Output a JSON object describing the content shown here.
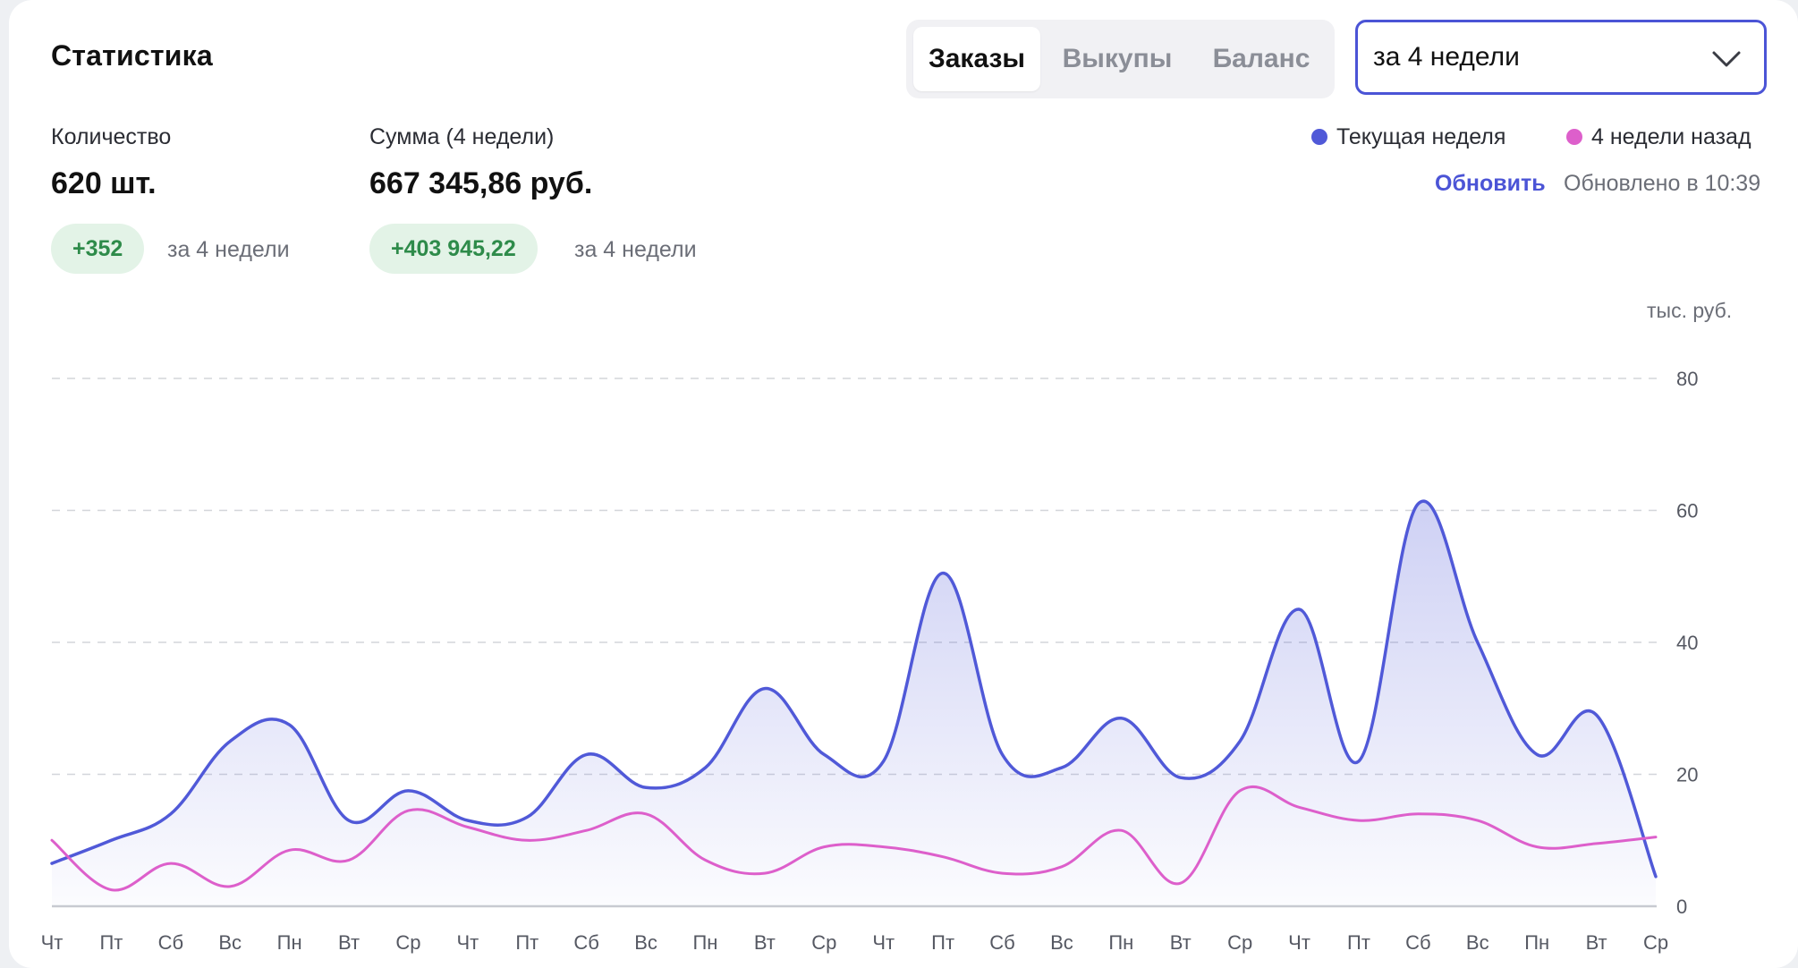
{
  "header": {
    "title": "Статистика",
    "tabs": [
      {
        "label": "Заказы",
        "active": true
      },
      {
        "label": "Выкупы",
        "active": false
      },
      {
        "label": "Баланс",
        "active": false
      }
    ],
    "period_select": {
      "value": "за 4 недели",
      "icon": "chevron-down-icon"
    }
  },
  "stats": {
    "count": {
      "label": "Количество",
      "value": "620 шт.",
      "delta": "+352",
      "delta_note": "за 4 недели"
    },
    "sum": {
      "label": "Сумма (4 недели)",
      "value": "667 345,86 руб.",
      "delta": "+403 945,22",
      "delta_note": "за 4 недели"
    }
  },
  "legend": {
    "current": "Текущая неделя",
    "previous": "4 недели назад"
  },
  "refresh": {
    "label": "Обновить",
    "updated_text": "Обновлено в 10:39"
  },
  "colors": {
    "accent": "#4b54d6",
    "current_series": "#5059d8",
    "previous_series": "#dd5fcb",
    "badge_bg": "#e3f3e7",
    "badge_text": "#2e8b4a"
  },
  "chart_data": {
    "type": "area",
    "ylabel": "тыс. руб.",
    "ylim": [
      0,
      80
    ],
    "yticks": [
      0,
      20,
      40,
      60,
      80
    ],
    "grid": true,
    "categories": [
      "Чт",
      "Пт",
      "Сб",
      "Вс",
      "Пн",
      "Вт",
      "Ср",
      "Чт",
      "Пт",
      "Сб",
      "Вс",
      "Пн",
      "Вт",
      "Ср",
      "Чт",
      "Пт",
      "Сб",
      "Вс",
      "Пн",
      "Вт",
      "Ср",
      "Чт",
      "Пт",
      "Сб",
      "Вс",
      "Пн",
      "Вт",
      "Ср"
    ],
    "series": [
      {
        "name": "Текущая неделя",
        "values": [
          6.5,
          10,
          14,
          25,
          27.5,
          13,
          17.5,
          13,
          13.5,
          23,
          18,
          21,
          33,
          23,
          22,
          50.5,
          23,
          21,
          28.5,
          19.5,
          25,
          45,
          22,
          61,
          40,
          23,
          29,
          4.5
        ]
      },
      {
        "name": "4 недели назад",
        "values": [
          10,
          2.5,
          6.5,
          3,
          8.5,
          7,
          14.5,
          12,
          10,
          11.5,
          14,
          7,
          5,
          9,
          9,
          7.5,
          5,
          6,
          11.5,
          3.5,
          17.5,
          15,
          13,
          14,
          13,
          9,
          9.5,
          10.5
        ]
      }
    ]
  }
}
